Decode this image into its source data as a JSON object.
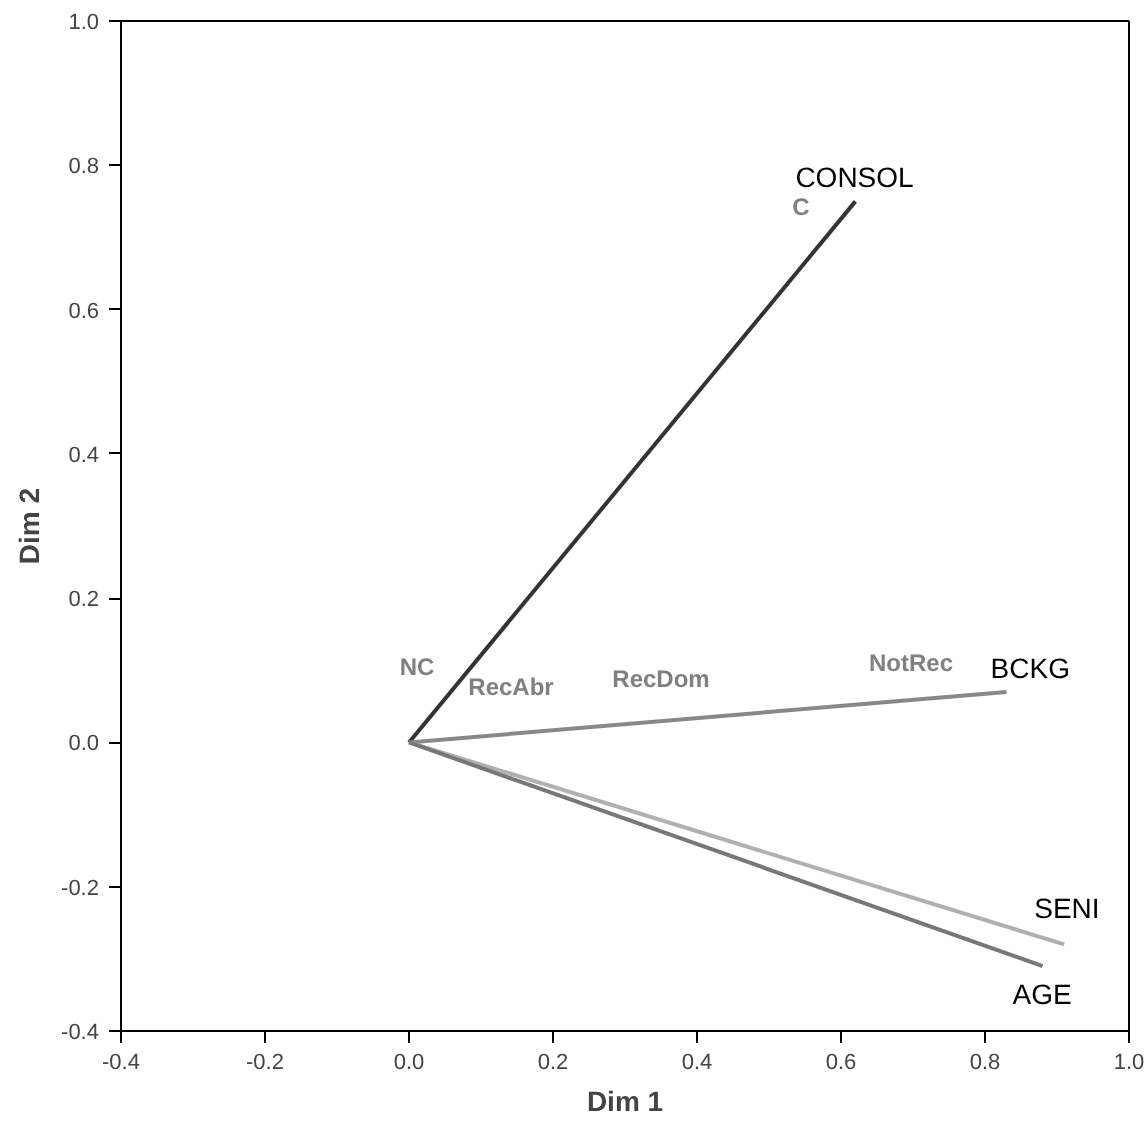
{
  "chart_data": {
    "type": "line",
    "xlabel": "Dim 1",
    "ylabel": "Dim 2",
    "xlim": [
      -0.4,
      1.0
    ],
    "ylim": [
      -0.4,
      1.0
    ],
    "xticks": [
      {
        "value": -0.4,
        "label": "-0.4"
      },
      {
        "value": -0.2,
        "label": "-0.2"
      },
      {
        "value": 0,
        "label": "0.0"
      },
      {
        "value": 0.2,
        "label": "0.2"
      },
      {
        "value": 0.4,
        "label": "0.4"
      },
      {
        "value": 0.6,
        "label": "0.6"
      },
      {
        "value": 0.8,
        "label": "0.8"
      },
      {
        "value": 1.0,
        "label": "1.0"
      }
    ],
    "yticks": [
      {
        "value": -0.4,
        "label": "-0.4"
      },
      {
        "value": -0.2,
        "label": "-0.2"
      },
      {
        "value": 0,
        "label": "0.0"
      },
      {
        "value": 0.2,
        "label": "0.2"
      },
      {
        "value": 0.4,
        "label": "0.4"
      },
      {
        "value": 0.6,
        "label": "0.6"
      },
      {
        "value": 0.8,
        "label": "0.8"
      },
      {
        "value": 1.0,
        "label": "1.0"
      }
    ],
    "grid": false,
    "legend": false,
    "marker": "none",
    "line_style": "solid",
    "series": [
      {
        "name": "CONSOL",
        "color": "#333333",
        "x": [
          0,
          0.62
        ],
        "values": [
          0,
          0.75
        ]
      },
      {
        "name": "BCKG",
        "color": "#888888",
        "x": [
          0,
          0.83
        ],
        "values": [
          0,
          0.07
        ]
      },
      {
        "name": "SENI",
        "color": "#b0b0b0",
        "x": [
          0,
          0.91
        ],
        "values": [
          0,
          -0.28
        ]
      },
      {
        "name": "AGE",
        "color": "#777777",
        "x": [
          0,
          0.88
        ],
        "values": [
          0,
          -0.31
        ]
      }
    ],
    "annotations": [
      "C",
      "NC",
      "RecAbr",
      "RecDom",
      "NotRec"
    ]
  }
}
